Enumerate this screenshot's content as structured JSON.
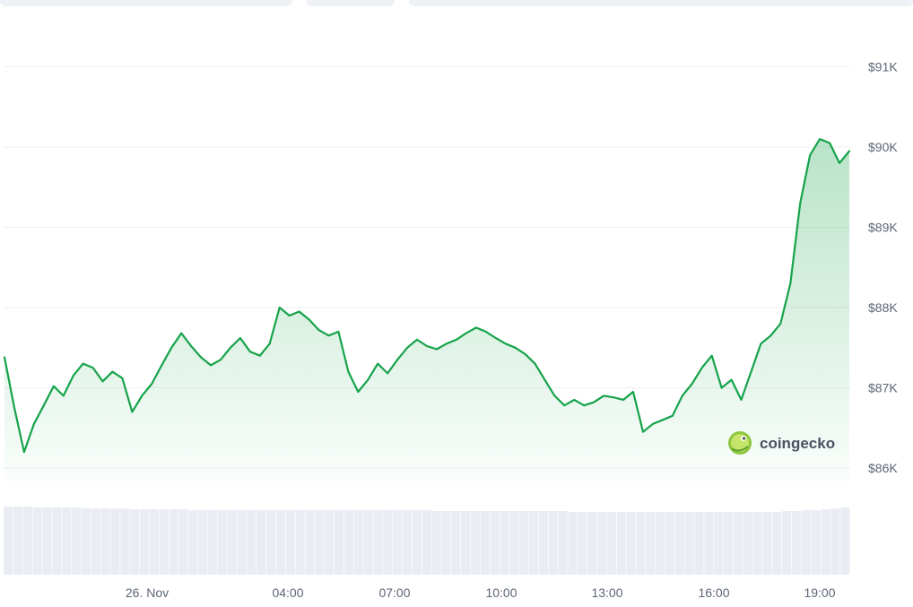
{
  "chart_data": {
    "type": "area",
    "title": "",
    "xlabel": "",
    "ylabel": "",
    "ylim": [
      85900,
      91500
    ],
    "y_ticks": [
      {
        "value": 86000,
        "label": "$86K"
      },
      {
        "value": 87000,
        "label": "$87K"
      },
      {
        "value": 88000,
        "label": "$88K"
      },
      {
        "value": 89000,
        "label": "$89K"
      },
      {
        "value": 90000,
        "label": "$90K"
      },
      {
        "value": 91000,
        "label": "$91K"
      }
    ],
    "x_tick_labels": [
      "26. Nov",
      "04:00",
      "07:00",
      "10:00",
      "13:00",
      "16:00",
      "19:00"
    ],
    "grid": true,
    "series": [
      {
        "values": [
          87380,
          86750,
          86200,
          86550,
          86780,
          87020,
          86900,
          87150,
          87300,
          87250,
          87080,
          87200,
          87120,
          86700,
          86900,
          87050,
          87280,
          87500,
          87680,
          87520,
          87380,
          87280,
          87350,
          87500,
          87620,
          87450,
          87400,
          87550,
          88000,
          87900,
          87950,
          87850,
          87720,
          87650,
          87700,
          87200,
          86950,
          87100,
          87300,
          87180,
          87350,
          87500,
          87600,
          87520,
          87480,
          87550,
          87600,
          87680,
          87750,
          87700,
          87620,
          87550,
          87500,
          87420,
          87300,
          87100,
          86900,
          86780,
          86850,
          86780,
          86820,
          86900,
          86880,
          86850,
          86950,
          86450,
          86550,
          86600,
          86650,
          86900,
          87050,
          87250,
          87400,
          87000,
          87100,
          86850,
          87200,
          87550,
          87650,
          87800,
          88300,
          89300,
          89900,
          90100,
          90050,
          89800,
          89950
        ],
        "color": "#16a34a"
      },
      {
        "type": "bar",
        "values": [
          76,
          76,
          76,
          75,
          75,
          75,
          75,
          75,
          74,
          74,
          74,
          74,
          74,
          73,
          73,
          73,
          73,
          73,
          73,
          72,
          72,
          72,
          72,
          72,
          72,
          72,
          72,
          72,
          72,
          72,
          72,
          72,
          72,
          72,
          72,
          72,
          72,
          72,
          72,
          72,
          72,
          72,
          72,
          72,
          71,
          71,
          71,
          71,
          71,
          71,
          71,
          71,
          71,
          71,
          71,
          71,
          71,
          71,
          70,
          70,
          70,
          70,
          70,
          70,
          70,
          70,
          70,
          70,
          70,
          70,
          70,
          70,
          70,
          70,
          70,
          70,
          70,
          70,
          70,
          70,
          71,
          71,
          72,
          72,
          73,
          74,
          75
        ],
        "color": "#e9edf3"
      }
    ],
    "watermark": "coingecko"
  }
}
